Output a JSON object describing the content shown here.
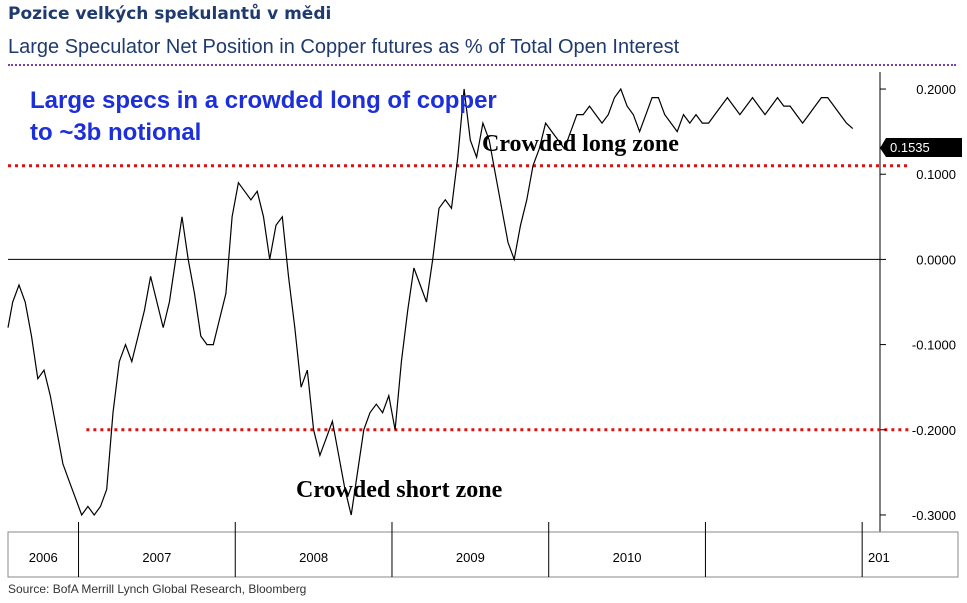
{
  "header": {
    "title": "Pozice velkých spekulantů v mědi",
    "chart_title": "Large Speculator Net Position in Copper futures as % of Total Open Interest"
  },
  "source": "Source: BofA Merrill Lynch Global Research, Bloomberg",
  "colors": {
    "title": "#1f3a6e",
    "annotation": "#1c2fd8",
    "threshold": "#e01010",
    "series": "#000000"
  },
  "chart_data": {
    "type": "line",
    "title": "Large Speculator Net Position in Copper futures as % of Total Open Interest",
    "xlabel": "",
    "ylabel": "",
    "xlim": [
      2005.55,
      2011.05
    ],
    "ylim": [
      -0.32,
      0.22
    ],
    "x_tick_labels": [
      "2006",
      "2007",
      "2008",
      "2009",
      "2010",
      "201"
    ],
    "y_ticks": [
      0.2,
      0.1,
      0.0,
      -0.1,
      -0.2,
      -0.3
    ],
    "y_tick_labels": [
      "0.2000",
      "0.1000",
      "0.0000",
      "-0.1000",
      "-0.2000",
      "-0.3000"
    ],
    "grid": false,
    "last_value_label": "0.1535",
    "annotations": {
      "headline_line1": "Large specs in a crowded long of copper",
      "headline_line2": "to ~3b notional",
      "long_zone": "Crowded long zone",
      "short_zone": "Crowded short zone"
    },
    "threshold_lines": [
      {
        "name": "crowded-long",
        "y": 0.11,
        "x_start": 2005.55,
        "x_end": 2011.05
      },
      {
        "name": "crowded-short",
        "y": -0.2,
        "x_start": 2006.05,
        "x_end": 2011.05
      }
    ],
    "zero_line": 0.0,
    "series": [
      {
        "x": [
          2005.55,
          2005.58,
          2005.62,
          2005.66,
          2005.7,
          2005.74,
          2005.78,
          2005.82,
          2005.86,
          2005.9,
          2005.94,
          2005.98,
          2006.02,
          2006.06,
          2006.1,
          2006.14,
          2006.18,
          2006.22,
          2006.26,
          2006.3,
          2006.34,
          2006.38,
          2006.42,
          2006.46,
          2006.5,
          2006.54,
          2006.58,
          2006.62,
          2006.66,
          2006.7,
          2006.74,
          2006.78,
          2006.82,
          2006.86,
          2006.9,
          2006.94,
          2006.98,
          2007.02,
          2007.06,
          2007.1,
          2007.14,
          2007.18,
          2007.22,
          2007.26,
          2007.3,
          2007.34,
          2007.38,
          2007.42,
          2007.46,
          2007.5,
          2007.54,
          2007.58,
          2007.62,
          2007.66,
          2007.7,
          2007.74,
          2007.78,
          2007.82,
          2007.86,
          2007.9,
          2007.94,
          2007.98,
          2008.02,
          2008.06,
          2008.1,
          2008.14,
          2008.18,
          2008.22,
          2008.26,
          2008.3,
          2008.34,
          2008.38,
          2008.42,
          2008.46,
          2008.5,
          2008.54,
          2008.58,
          2008.62,
          2008.66,
          2008.7,
          2008.74,
          2008.78,
          2008.82,
          2008.86,
          2008.9,
          2008.94,
          2008.98,
          2009.02,
          2009.06,
          2009.1,
          2009.14,
          2009.18,
          2009.22,
          2009.26,
          2009.3,
          2009.34,
          2009.38,
          2009.42,
          2009.46,
          2009.5,
          2009.54,
          2009.58,
          2009.62,
          2009.66,
          2009.7,
          2009.74,
          2009.78,
          2009.82,
          2009.86,
          2009.9,
          2009.94,
          2009.98,
          2010.02,
          2010.06,
          2010.1,
          2010.14,
          2010.18,
          2010.22,
          2010.26,
          2010.3,
          2010.34,
          2010.38,
          2010.42,
          2010.46,
          2010.5,
          2010.54,
          2010.58,
          2010.62,
          2010.66,
          2010.7,
          2010.74,
          2010.78,
          2010.82,
          2010.86,
          2010.9,
          2010.94
        ],
        "values": [
          -0.08,
          -0.05,
          -0.03,
          -0.05,
          -0.09,
          -0.14,
          -0.13,
          -0.16,
          -0.2,
          -0.24,
          -0.26,
          -0.28,
          -0.3,
          -0.29,
          -0.3,
          -0.29,
          -0.27,
          -0.18,
          -0.12,
          -0.1,
          -0.12,
          -0.09,
          -0.06,
          -0.02,
          -0.05,
          -0.08,
          -0.05,
          0.0,
          0.05,
          0.0,
          -0.04,
          -0.09,
          -0.1,
          -0.1,
          -0.07,
          -0.04,
          0.05,
          0.09,
          0.08,
          0.07,
          0.08,
          0.05,
          0.0,
          0.04,
          0.05,
          -0.02,
          -0.08,
          -0.15,
          -0.13,
          -0.2,
          -0.23,
          -0.21,
          -0.19,
          -0.23,
          -0.27,
          -0.3,
          -0.25,
          -0.2,
          -0.18,
          -0.17,
          -0.18,
          -0.16,
          -0.2,
          -0.12,
          -0.06,
          -0.01,
          -0.03,
          -0.05,
          0.0,
          0.06,
          0.07,
          0.06,
          0.12,
          0.2,
          0.14,
          0.12,
          0.16,
          0.14,
          0.1,
          0.06,
          0.02,
          0.0,
          0.04,
          0.07,
          0.11,
          0.13,
          0.16,
          0.15,
          0.14,
          0.13,
          0.15,
          0.17,
          0.17,
          0.18,
          0.17,
          0.16,
          0.17,
          0.19,
          0.2,
          0.18,
          0.17,
          0.15,
          0.17,
          0.19,
          0.19,
          0.17,
          0.16,
          0.15,
          0.17,
          0.16,
          0.17,
          0.16,
          0.16,
          0.17,
          0.18,
          0.19,
          0.18,
          0.17,
          0.18,
          0.19,
          0.18,
          0.17,
          0.18,
          0.19,
          0.18,
          0.18,
          0.17,
          0.16,
          0.17,
          0.18,
          0.19,
          0.19,
          0.18,
          0.17,
          0.16,
          0.1535
        ]
      }
    ]
  }
}
